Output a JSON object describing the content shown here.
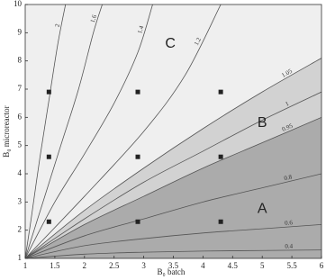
{
  "chart_data": {
    "type": "contour",
    "xlabel": "B₀ batch",
    "ylabel": "B₀ microreactor",
    "xlim": [
      1,
      6
    ],
    "ylim": [
      1,
      10
    ],
    "xticks": [
      1,
      1.5,
      2,
      2.5,
      3,
      3.5,
      4,
      4.5,
      5,
      5.5,
      6
    ],
    "yticks": [
      1,
      2,
      3,
      4,
      5,
      6,
      7,
      8,
      9,
      10
    ],
    "background": "#efefef",
    "line_color": "#555555",
    "contours": [
      {
        "name": "2",
        "x": [
          1,
          1.1,
          1.25,
          1.4,
          1.55,
          1.68
        ],
        "y": [
          1,
          2.4,
          4.6,
          6.6,
          8.6,
          10
        ]
      },
      {
        "name": "1.6",
        "x": [
          1,
          1.3,
          1.6,
          1.9,
          2.15,
          2.3
        ],
        "y": [
          1,
          3,
          5,
          7,
          9,
          10
        ]
      },
      {
        "name": "1.4",
        "x": [
          1,
          1.5,
          2,
          2.5,
          2.9,
          3.15
        ],
        "y": [
          1,
          3,
          4.7,
          6.5,
          8.3,
          10
        ]
      },
      {
        "name": "1.2",
        "x": [
          1,
          2,
          3,
          3.7,
          4.3
        ],
        "y": [
          1,
          3.2,
          5.5,
          7.5,
          10
        ]
      },
      {
        "name": "1.05",
        "x": [
          1,
          2,
          3,
          4,
          5,
          6
        ],
        "y": [
          1,
          2.7,
          4.2,
          5.6,
          6.9,
          8.1
        ],
        "fill": "#d2d2d2"
      },
      {
        "name": "1",
        "x": [
          1,
          2,
          3,
          4,
          5,
          6
        ],
        "y": [
          1,
          2.4,
          3.7,
          4.8,
          5.9,
          6.9
        ]
      },
      {
        "name": "0.95",
        "x": [
          1,
          2,
          3,
          4,
          5,
          6
        ],
        "y": [
          1,
          2.2,
          3.2,
          4.2,
          5.1,
          6.0
        ],
        "fill": "#ababab"
      },
      {
        "name": "0.8",
        "x": [
          1,
          2,
          3,
          4,
          5,
          6
        ],
        "y": [
          1,
          1.8,
          2.4,
          3,
          3.5,
          4.0
        ]
      },
      {
        "name": "0.6",
        "x": [
          1,
          2,
          3,
          4,
          5,
          6
        ],
        "y": [
          1,
          1.45,
          1.7,
          1.9,
          2.05,
          2.2
        ]
      },
      {
        "name": "0.4",
        "x": [
          1,
          2,
          3,
          4,
          5,
          6
        ],
        "y": [
          1,
          1.15,
          1.22,
          1.26,
          1.28,
          1.3
        ]
      }
    ],
    "points": {
      "color": "#222222",
      "x": [
        1.4,
        2.9,
        4.3,
        1.4,
        2.9,
        4.3,
        1.4,
        2.9,
        4.3
      ],
      "y": [
        6.9,
        6.9,
        6.9,
        4.6,
        4.6,
        4.6,
        2.3,
        2.3,
        2.3
      ]
    },
    "annotations": [
      {
        "text": "C",
        "x": 3.45,
        "y": 8.6
      },
      {
        "text": "B",
        "x": 5.0,
        "y": 5.8
      },
      {
        "text": "A",
        "x": 5.0,
        "y": 2.75
      }
    ]
  }
}
